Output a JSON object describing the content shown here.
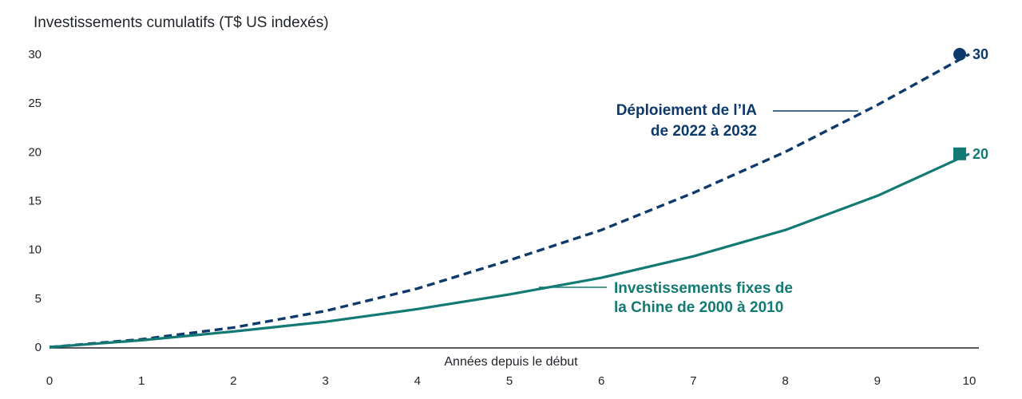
{
  "chart_data": {
    "type": "line",
    "ylabel": "Investissements cumulatifs (T$ US indexés)",
    "xlabel": "Années depuis le début",
    "x": [
      0,
      1,
      2,
      3,
      4,
      5,
      6,
      7,
      8,
      9,
      10
    ],
    "xlim": [
      0,
      10
    ],
    "ylim": [
      0,
      30
    ],
    "yticks": [
      0,
      5,
      10,
      15,
      20,
      25,
      30
    ],
    "grid": false,
    "series": [
      {
        "name": "Déploiement de l’IA de 2022 à 2032",
        "label_lines": [
          "Déploiement de l’IA",
          "de 2022 à 2032"
        ],
        "style": "dashed",
        "marker": "circle",
        "color": "#0d3a6b",
        "end_label": "30",
        "x": [
          0,
          1,
          2,
          3,
          4,
          5,
          6,
          7,
          8,
          9,
          10
        ],
        "values": [
          0,
          0.8,
          2.0,
          3.7,
          6.0,
          8.9,
          12.0,
          15.8,
          20.0,
          24.8,
          30.0
        ]
      },
      {
        "name": "Investissements fixes de la Chine de 2000 à 2010",
        "label_lines": [
          "Investissements fixes de",
          "la Chine de 2000 à 2010"
        ],
        "style": "solid",
        "marker": "square",
        "color": "#127a73",
        "end_label": "20",
        "x": [
          0,
          1,
          2,
          3,
          4,
          5,
          6,
          7,
          8,
          9,
          10
        ],
        "values": [
          0,
          0.7,
          1.6,
          2.6,
          3.9,
          5.4,
          7.1,
          9.3,
          12.0,
          15.5,
          19.8
        ]
      }
    ]
  }
}
